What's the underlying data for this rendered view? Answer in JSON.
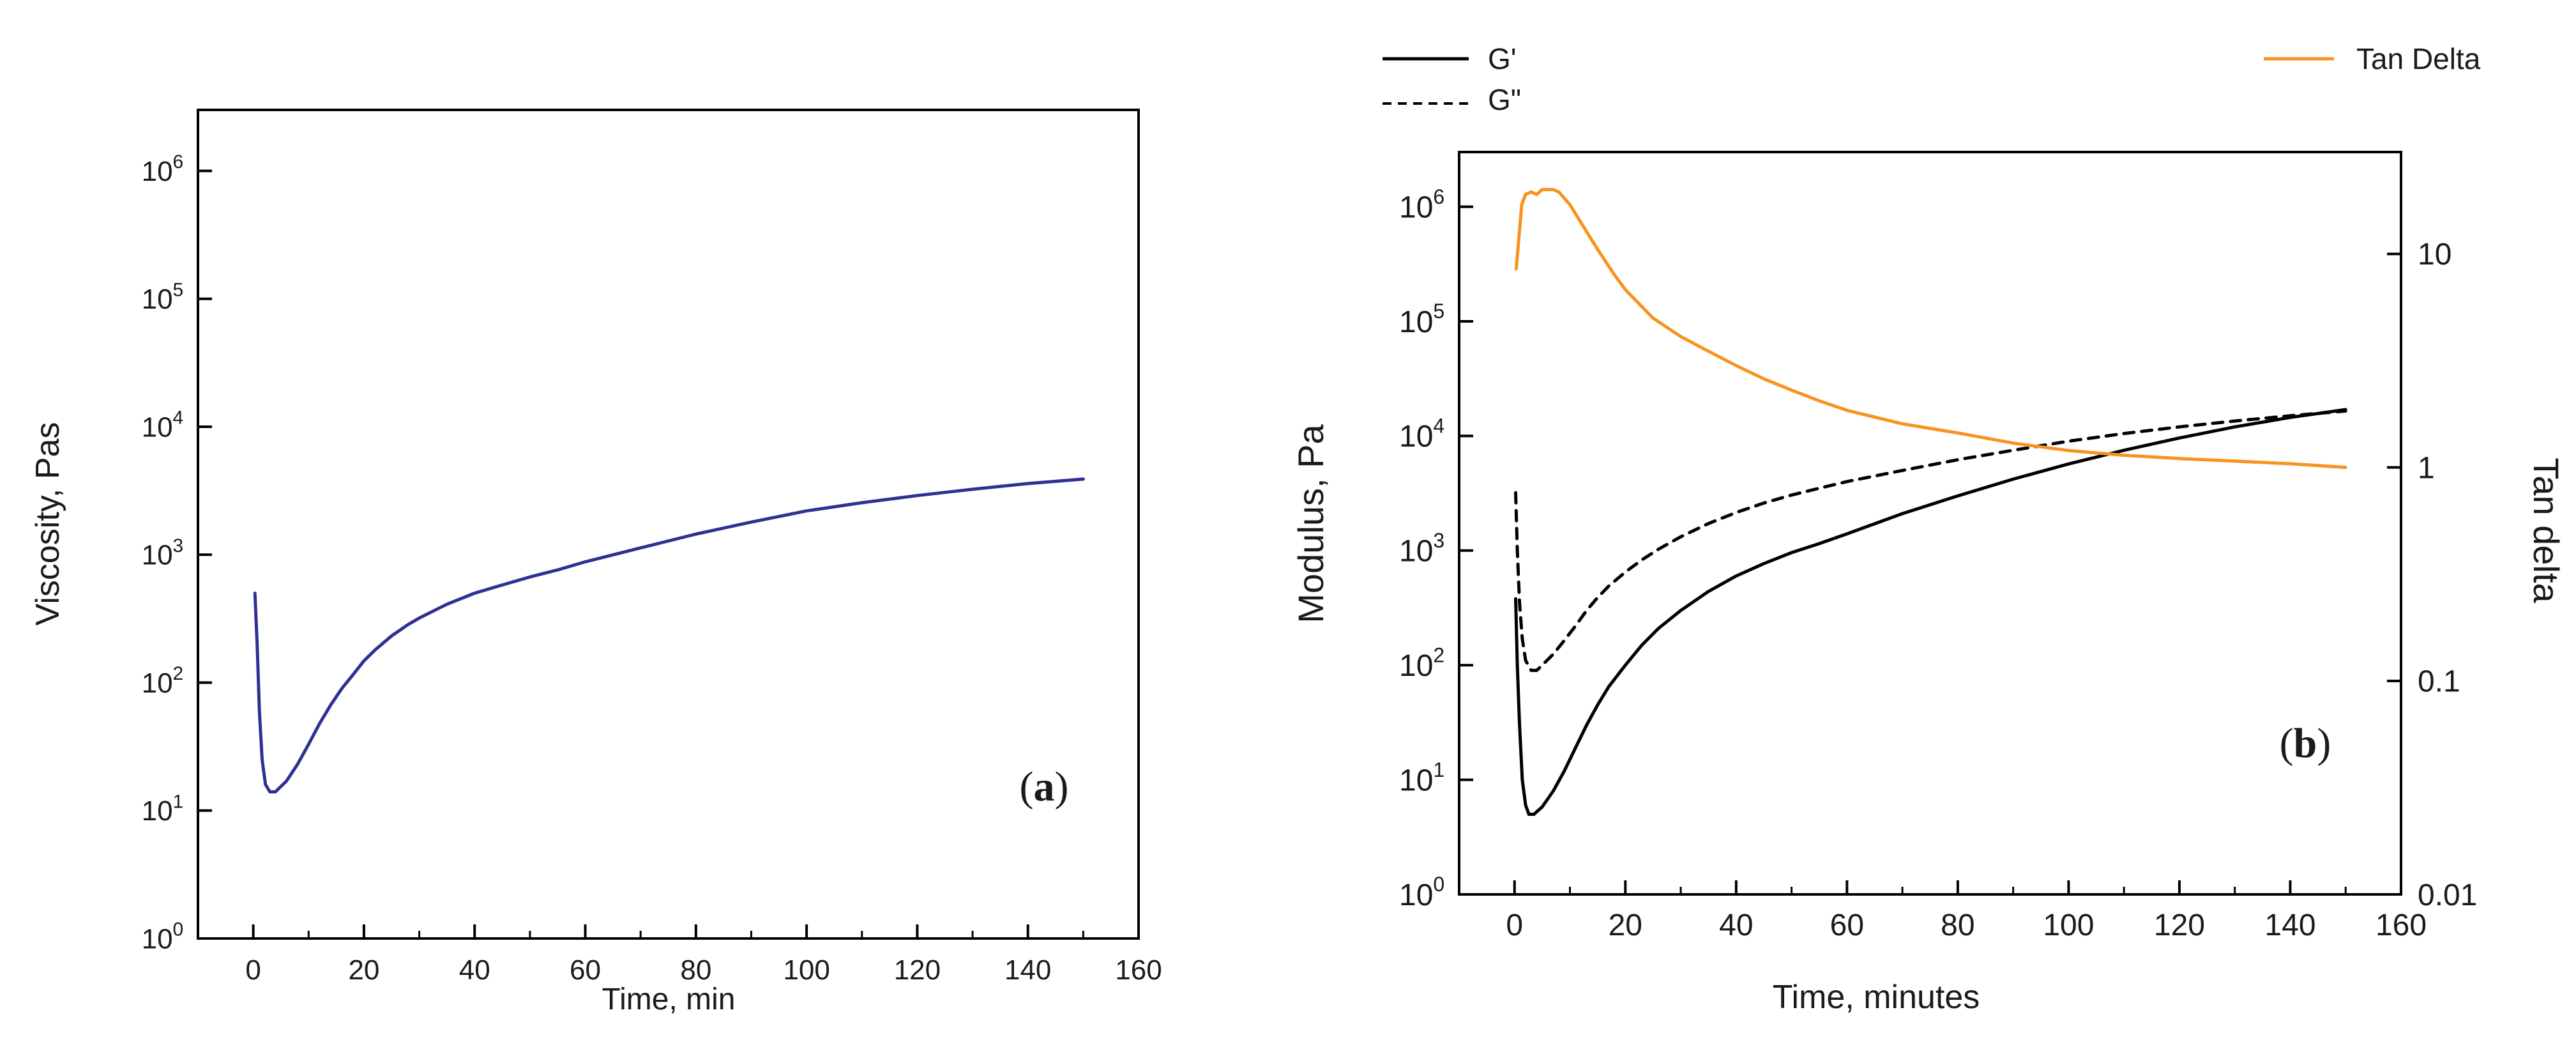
{
  "chart_data": [
    {
      "panel_label": "a",
      "type": "line",
      "xlabel": "Time, min",
      "ylabel": "Viscosity, Pas",
      "xlim": [
        -10,
        160
      ],
      "ylim": [
        1,
        3000000
      ],
      "yscale": "log",
      "x_ticks": [
        0,
        20,
        40,
        60,
        80,
        100,
        120,
        140,
        160
      ],
      "y_ticks": [
        {
          "base": "10",
          "exp": "0",
          "value": 1
        },
        {
          "base": "10",
          "exp": "1",
          "value": 10
        },
        {
          "base": "10",
          "exp": "2",
          "value": 100
        },
        {
          "base": "10",
          "exp": "3",
          "value": 1000
        },
        {
          "base": "10",
          "exp": "4",
          "value": 10000
        },
        {
          "base": "10",
          "exp": "5",
          "value": 100000
        },
        {
          "base": "10",
          "exp": "6",
          "value": 1000000
        }
      ],
      "grid": false,
      "series": [
        {
          "color": "#2e3192",
          "dash": "solid",
          "points": [
            [
              0.3,
              500
            ],
            [
              0.7,
              200
            ],
            [
              1.1,
              60
            ],
            [
              1.6,
              25
            ],
            [
              2.2,
              16
            ],
            [
              3,
              14
            ],
            [
              4,
              14
            ],
            [
              6,
              17
            ],
            [
              8,
              23
            ],
            [
              10,
              33
            ],
            [
              12,
              48
            ],
            [
              14,
              67
            ],
            [
              16,
              90
            ],
            [
              18,
              115
            ],
            [
              20,
              148
            ],
            [
              22,
              180
            ],
            [
              25,
              232
            ],
            [
              28,
              285
            ],
            [
              30,
              320
            ],
            [
              35,
              410
            ],
            [
              40,
              500
            ],
            [
              45,
              580
            ],
            [
              50,
              670
            ],
            [
              55,
              760
            ],
            [
              60,
              880
            ],
            [
              70,
              1130
            ],
            [
              80,
              1450
            ],
            [
              90,
              1800
            ],
            [
              100,
              2200
            ],
            [
              110,
              2550
            ],
            [
              120,
              2900
            ],
            [
              130,
              3250
            ],
            [
              140,
              3600
            ],
            [
              150,
              3900
            ]
          ]
        }
      ]
    },
    {
      "panel_label": "b",
      "type": "line",
      "xlabel": "Time, minutes",
      "ylabel": "Modulus, Pa",
      "y2label": "Tan delta",
      "xlim": [
        -10,
        160
      ],
      "ylim": [
        1,
        3000000
      ],
      "yscale": "log",
      "y2lim": [
        0.01,
        30
      ],
      "y2scale": "log",
      "x_ticks": [
        0,
        20,
        40,
        60,
        80,
        100,
        120,
        140,
        160
      ],
      "y_ticks": [
        {
          "base": "10",
          "exp": "0",
          "value": 1
        },
        {
          "base": "10",
          "exp": "1",
          "value": 10
        },
        {
          "base": "10",
          "exp": "2",
          "value": 100
        },
        {
          "base": "10",
          "exp": "3",
          "value": 1000
        },
        {
          "base": "10",
          "exp": "4",
          "value": 10000
        },
        {
          "base": "10",
          "exp": "5",
          "value": 100000
        },
        {
          "base": "10",
          "exp": "6",
          "value": 1000000
        }
      ],
      "y2_ticks": [
        {
          "label": "0.01",
          "value": 0.01
        },
        {
          "label": "0.1",
          "value": 0.1
        },
        {
          "label": "1",
          "value": 1
        },
        {
          "label": "10",
          "value": 10
        }
      ],
      "grid": false,
      "legend_placement": "top",
      "series": [
        {
          "name": "G'",
          "axis": "left",
          "color": "#000000",
          "dash": "solid",
          "points": [
            [
              0.2,
              380
            ],
            [
              0.5,
              100
            ],
            [
              0.9,
              30
            ],
            [
              1.4,
              10
            ],
            [
              2,
              6
            ],
            [
              2.6,
              5
            ],
            [
              3.5,
              5
            ],
            [
              5,
              5.8
            ],
            [
              7,
              8
            ],
            [
              9,
              12
            ],
            [
              11,
              19
            ],
            [
              13,
              30
            ],
            [
              15,
              45
            ],
            [
              17,
              65
            ],
            [
              20,
              100
            ],
            [
              23,
              150
            ],
            [
              26,
              210
            ],
            [
              30,
              300
            ],
            [
              35,
              440
            ],
            [
              40,
              600
            ],
            [
              45,
              770
            ],
            [
              50,
              960
            ],
            [
              55,
              1150
            ],
            [
              60,
              1400
            ],
            [
              70,
              2100
            ],
            [
              80,
              3000
            ],
            [
              90,
              4200
            ],
            [
              100,
              5700
            ],
            [
              110,
              7500
            ],
            [
              120,
              9600
            ],
            [
              130,
              12000
            ],
            [
              140,
              14500
            ],
            [
              150,
              17000
            ]
          ]
        },
        {
          "name": "G\"",
          "axis": "left",
          "color": "#000000",
          "dash": "dashed",
          "points": [
            [
              0.2,
              3200
            ],
            [
              0.5,
              1000
            ],
            [
              0.9,
              350
            ],
            [
              1.4,
              170
            ],
            [
              2,
              110
            ],
            [
              3,
              90
            ],
            [
              4,
              90
            ],
            [
              5,
              100
            ],
            [
              7,
              125
            ],
            [
              9,
              165
            ],
            [
              11,
              220
            ],
            [
              13,
              300
            ],
            [
              15,
              390
            ],
            [
              17,
              490
            ],
            [
              20,
              650
            ],
            [
              23,
              830
            ],
            [
              26,
              1030
            ],
            [
              30,
              1320
            ],
            [
              35,
              1720
            ],
            [
              40,
              2150
            ],
            [
              45,
              2600
            ],
            [
              50,
              3050
            ],
            [
              55,
              3500
            ],
            [
              60,
              4000
            ],
            [
              70,
              5000
            ],
            [
              80,
              6200
            ],
            [
              90,
              7500
            ],
            [
              100,
              9000
            ],
            [
              110,
              10500
            ],
            [
              120,
              12000
            ],
            [
              130,
              13500
            ],
            [
              140,
              15000
            ],
            [
              150,
              16500
            ]
          ]
        },
        {
          "name": "Tan Delta",
          "axis": "right",
          "color": "#f7931e",
          "dash": "solid",
          "points": [
            [
              0.3,
              8.5
            ],
            [
              0.8,
              12
            ],
            [
              1.3,
              17
            ],
            [
              2,
              19
            ],
            [
              3,
              19.5
            ],
            [
              4,
              19
            ],
            [
              5,
              20
            ],
            [
              6,
              20
            ],
            [
              7,
              20
            ],
            [
              8,
              19.5
            ],
            [
              10,
              17
            ],
            [
              12,
              14
            ],
            [
              15,
              10.5
            ],
            [
              18,
              8
            ],
            [
              20,
              6.8
            ],
            [
              25,
              5
            ],
            [
              30,
              4.1
            ],
            [
              35,
              3.5
            ],
            [
              40,
              3.0
            ],
            [
              45,
              2.6
            ],
            [
              50,
              2.3
            ],
            [
              55,
              2.05
            ],
            [
              60,
              1.85
            ],
            [
              70,
              1.6
            ],
            [
              80,
              1.45
            ],
            [
              90,
              1.3
            ],
            [
              100,
              1.2
            ],
            [
              110,
              1.14
            ],
            [
              120,
              1.1
            ],
            [
              130,
              1.07
            ],
            [
              140,
              1.04
            ],
            [
              150,
              1.0
            ]
          ]
        }
      ]
    }
  ]
}
